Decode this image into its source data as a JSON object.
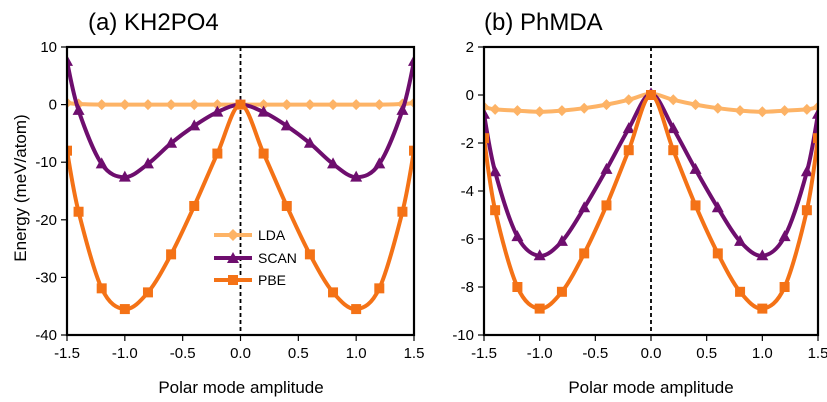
{
  "colors": {
    "LDA": "#FDB366",
    "SCAN": "#6E0E6E",
    "PBE": "#F47216"
  },
  "chart_data": [
    {
      "type": "line",
      "title": "(a) KH2PO4",
      "xlabel": "Polar mode amplitude",
      "ylabel": "Energy (meV/atom)",
      "xlim": [
        -1.5,
        1.5
      ],
      "ylim": [
        -40,
        10
      ],
      "xticks": [
        -1.5,
        -1.0,
        -0.5,
        0.0,
        0.5,
        1.0,
        1.5
      ],
      "xtick_labels": [
        "-1.5",
        "-1.0",
        "-0.5",
        "0.0",
        "0.5",
        "1.0",
        "1.5"
      ],
      "yticks": [
        10,
        0,
        -10,
        -20,
        -30,
        -40
      ],
      "ytick_labels": [
        "10",
        "0",
        "-10",
        "-20",
        "-30",
        "-40"
      ],
      "zero_line": "dashed vertical at x = 0",
      "grid": false,
      "legend": {
        "position": "lower-center",
        "entries": [
          "LDA",
          "SCAN",
          "PBE"
        ]
      },
      "series": [
        {
          "name": "LDA",
          "marker": "diamond",
          "x": [
            -1.5,
            -1.4,
            -1.2,
            -1.0,
            -0.8,
            -0.6,
            -0.4,
            -0.2,
            0.0,
            0.2,
            0.4,
            0.6,
            0.8,
            1.0,
            1.2,
            1.4,
            1.5
          ],
          "y": [
            0.3,
            0.1,
            0.0,
            0.0,
            0.0,
            0.0,
            0.0,
            0.0,
            0.0,
            0.0,
            0.0,
            0.0,
            0.0,
            0.0,
            0.0,
            0.1,
            0.3
          ]
        },
        {
          "name": "SCAN",
          "marker": "triangle",
          "x": [
            -1.5,
            -1.4,
            -1.2,
            -1.0,
            -0.8,
            -0.6,
            -0.4,
            -0.2,
            0.0,
            0.2,
            0.4,
            0.6,
            0.8,
            1.0,
            1.2,
            1.4,
            1.5
          ],
          "y": [
            7.5,
            -1.0,
            -10.3,
            -12.6,
            -10.3,
            -6.7,
            -3.7,
            -1.3,
            0.0,
            -1.3,
            -3.7,
            -6.7,
            -10.3,
            -12.6,
            -10.3,
            -1.0,
            7.5
          ]
        },
        {
          "name": "PBE",
          "marker": "square",
          "x": [
            -1.5,
            -1.4,
            -1.2,
            -1.0,
            -0.8,
            -0.6,
            -0.4,
            -0.2,
            0.0,
            0.2,
            0.4,
            0.6,
            0.8,
            1.0,
            1.2,
            1.4,
            1.5
          ],
          "y": [
            -8.0,
            -18.6,
            -31.9,
            -35.5,
            -32.6,
            -26.0,
            -17.6,
            -8.5,
            0.0,
            -8.5,
            -17.6,
            -26.0,
            -32.6,
            -35.5,
            -31.9,
            -18.6,
            -8.0
          ]
        }
      ]
    },
    {
      "type": "line",
      "title": "(b) PhMDA",
      "xlabel": "Polar mode amplitude",
      "ylabel": "",
      "xlim": [
        -1.5,
        1.5
      ],
      "ylim": [
        -10,
        2
      ],
      "xticks": [
        -1.5,
        -1.0,
        -0.5,
        0.0,
        0.5,
        1.0,
        1.5
      ],
      "xtick_labels": [
        "-1.5",
        "-1.0",
        "-0.5",
        "0.0",
        "0.5",
        "1.0",
        "1.5"
      ],
      "yticks": [
        2,
        0,
        -2,
        -4,
        -6,
        -8,
        -10
      ],
      "ytick_labels": [
        "2",
        "0",
        "-2",
        "-4",
        "-6",
        "-8",
        "-10"
      ],
      "zero_line": "dashed vertical at x = 0",
      "grid": false,
      "series": [
        {
          "name": "LDA",
          "marker": "diamond",
          "x": [
            -1.5,
            -1.4,
            -1.2,
            -1.0,
            -0.8,
            -0.6,
            -0.4,
            -0.2,
            0.0,
            0.2,
            0.4,
            0.6,
            0.8,
            1.0,
            1.2,
            1.4,
            1.5
          ],
          "y": [
            -0.5,
            -0.6,
            -0.65,
            -0.7,
            -0.65,
            -0.55,
            -0.4,
            -0.2,
            0.05,
            -0.2,
            -0.4,
            -0.55,
            -0.65,
            -0.7,
            -0.65,
            -0.6,
            -0.5
          ]
        },
        {
          "name": "SCAN",
          "marker": "triangle",
          "x": [
            -1.5,
            -1.4,
            -1.2,
            -1.0,
            -0.8,
            -0.6,
            -0.4,
            -0.2,
            0.0,
            0.2,
            0.4,
            0.6,
            0.8,
            1.0,
            1.2,
            1.4,
            1.5
          ],
          "y": [
            -0.8,
            -3.2,
            -5.9,
            -6.7,
            -6.1,
            -4.7,
            -3.1,
            -1.4,
            0.05,
            -1.4,
            -3.1,
            -4.7,
            -6.1,
            -6.7,
            -5.9,
            -3.2,
            -0.8
          ]
        },
        {
          "name": "PBE",
          "marker": "square",
          "x": [
            -1.5,
            -1.4,
            -1.2,
            -1.0,
            -0.8,
            -0.6,
            -0.4,
            -0.2,
            0.0,
            0.2,
            0.4,
            0.6,
            0.8,
            1.0,
            1.2,
            1.4,
            1.5
          ],
          "y": [
            -1.8,
            -4.8,
            -8.0,
            -8.9,
            -8.2,
            -6.6,
            -4.6,
            -2.3,
            0.0,
            -2.3,
            -4.6,
            -6.6,
            -8.2,
            -8.9,
            -8.0,
            -4.8,
            -1.8
          ]
        }
      ]
    }
  ]
}
